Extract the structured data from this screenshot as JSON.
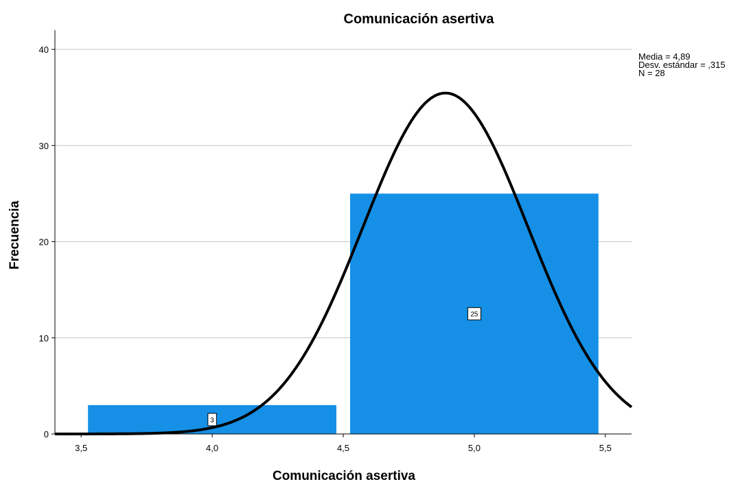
{
  "chart_data": {
    "type": "bar",
    "title": "Comunicación asertiva",
    "xlabel": "Comunicación asertiva",
    "ylabel": "Frecuencia",
    "xlim": [
      3.4,
      5.6
    ],
    "ylim": [
      0,
      42
    ],
    "x_ticks": [
      3.5,
      4.0,
      4.5,
      5.0,
      5.5
    ],
    "x_tick_labels": [
      "3,5",
      "4,0",
      "4,5",
      "5,0",
      "5,5"
    ],
    "y_ticks": [
      0,
      10,
      20,
      30,
      40
    ],
    "y_tick_labels": [
      "0",
      "10",
      "20",
      "30",
      "40"
    ],
    "grid": true,
    "bins": [
      {
        "x0": 3.5,
        "x1": 4.5,
        "value": 3,
        "label": "3"
      },
      {
        "x0": 4.5,
        "x1": 5.5,
        "value": 25,
        "label": "25"
      }
    ],
    "normal_curve": {
      "mean": 4.89,
      "sd": 0.315,
      "n": 28,
      "bin_width": 1.0
    },
    "stats_text": [
      "Media = 4,89",
      "Desv. estándar = ,315",
      "N = 28"
    ],
    "bar_color": "#1590e6",
    "curve_color": "#000000"
  }
}
